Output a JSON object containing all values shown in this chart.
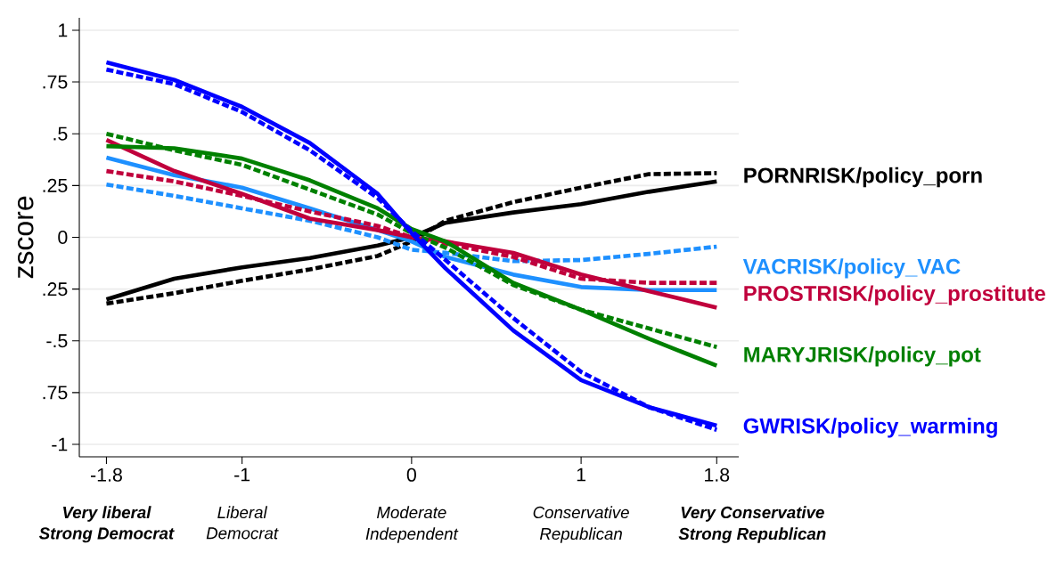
{
  "chart_data": {
    "type": "line",
    "ylabel": "zscore",
    "x": [
      -1.8,
      -1.4,
      -1,
      -0.6,
      -0.2,
      0,
      0.2,
      0.6,
      1,
      1.4,
      1.8
    ],
    "xlim": [
      -1.96,
      1.93
    ],
    "xticks": [
      -1.8,
      -1,
      0,
      1,
      1.8
    ],
    "ylim": [
      -1.06,
      1.06
    ],
    "yticks": [
      1,
      {
        "value": 0.75,
        "label": ".75"
      },
      {
        "value": 0.5,
        "label": ".5"
      },
      {
        "value": 0.25,
        "label": ".25"
      },
      0,
      {
        "value": -0.25,
        "label": ".25"
      },
      {
        "value": -0.5,
        "label": "-.5"
      },
      {
        "value": -0.75,
        "label": ".75"
      },
      -1
    ],
    "grid": "y",
    "marker": "none",
    "series": [
      {
        "name": "PORNRISK/policy_porn",
        "color": "#000000",
        "line_style": "solid",
        "values": [
          -0.3,
          -0.2,
          -0.145,
          -0.1,
          -0.04,
          0,
          0.07,
          0.12,
          0.16,
          0.22,
          0.27
        ]
      },
      {
        "color": "#000000",
        "line_style": "dashed",
        "values": [
          -0.32,
          -0.27,
          -0.21,
          -0.155,
          -0.09,
          -0.02,
          0.08,
          0.17,
          0.24,
          0.305,
          0.31
        ]
      },
      {
        "name": "VACRISK/policy_VAC",
        "color": "#1e90ff",
        "line_style": "solid",
        "values": [
          0.385,
          0.3,
          0.24,
          0.14,
          0.035,
          -0.02,
          -0.095,
          -0.18,
          -0.24,
          -0.255,
          -0.255
        ]
      },
      {
        "color": "#1e90ff",
        "line_style": "dashed",
        "values": [
          0.255,
          0.2,
          0.14,
          0.08,
          0,
          -0.06,
          -0.075,
          -0.115,
          -0.11,
          -0.08,
          -0.045
        ]
      },
      {
        "name": "PROSTRISK/policy_prostitute",
        "color": "#c0003c",
        "line_style": "solid",
        "values": [
          0.47,
          0.32,
          0.21,
          0.09,
          0.035,
          0,
          -0.02,
          -0.075,
          -0.18,
          -0.26,
          -0.34
        ]
      },
      {
        "color": "#c0003c",
        "line_style": "dashed",
        "values": [
          0.32,
          0.27,
          0.2,
          0.125,
          0.055,
          0,
          -0.03,
          -0.095,
          -0.2,
          -0.22,
          -0.22
        ]
      },
      {
        "name": "MARYJRISK/policy_pot",
        "color": "#008000",
        "line_style": "solid",
        "values": [
          0.44,
          0.43,
          0.38,
          0.275,
          0.14,
          0.04,
          -0.02,
          -0.22,
          -0.35,
          -0.49,
          -0.62
        ]
      },
      {
        "color": "#008000",
        "line_style": "dashed",
        "values": [
          0.5,
          0.42,
          0.35,
          0.23,
          0.11,
          0.02,
          -0.05,
          -0.23,
          -0.35,
          -0.44,
          -0.53
        ]
      },
      {
        "name": "GWRISK/policy_warming",
        "color": "#0000ff",
        "line_style": "solid",
        "values": [
          0.845,
          0.76,
          0.63,
          0.455,
          0.21,
          0.02,
          -0.15,
          -0.45,
          -0.69,
          -0.82,
          -0.91
        ]
      },
      {
        "color": "#0000ff",
        "line_style": "dashed",
        "values": [
          0.81,
          0.74,
          0.605,
          0.42,
          0.19,
          0.03,
          -0.11,
          -0.39,
          -0.65,
          -0.82,
          -0.93
        ]
      }
    ],
    "annotations": [
      "Very liberal",
      "Strong Democrat",
      "Liberal",
      "Democrat",
      "Moderate",
      "Independent",
      "Conservative",
      "Republican",
      "Very Conservative",
      "Strong Republican"
    ]
  }
}
